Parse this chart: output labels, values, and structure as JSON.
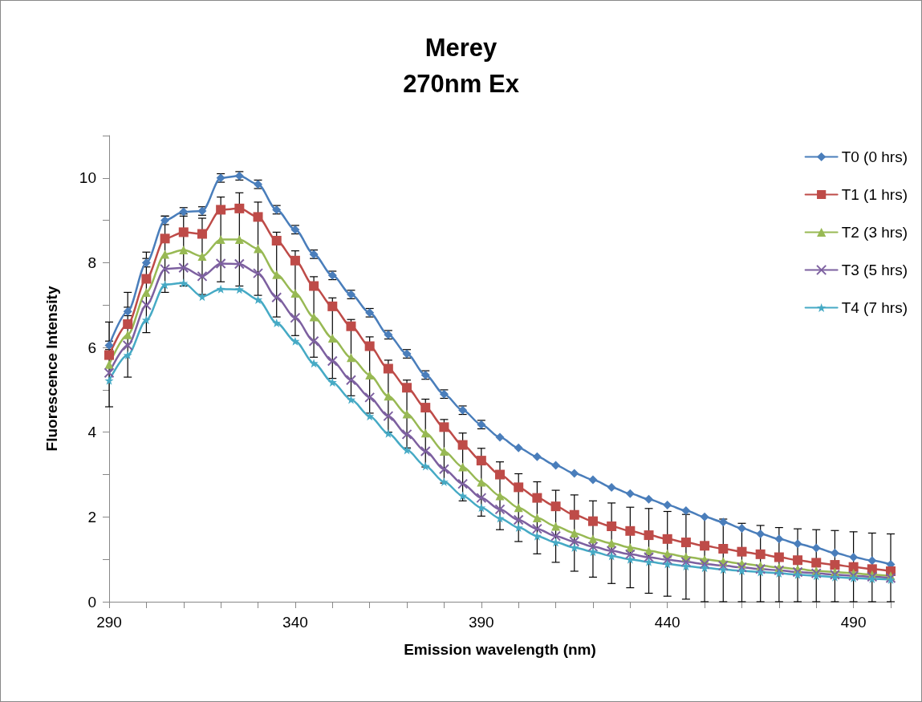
{
  "chart_data": {
    "type": "line",
    "title": "Merey",
    "subtitle": "270nm Ex",
    "xlabel": "Emission wavelength (nm)",
    "ylabel": "Fluorescence Intensity",
    "x": [
      290,
      295,
      300,
      305,
      310,
      315,
      320,
      325,
      330,
      335,
      340,
      345,
      350,
      355,
      360,
      365,
      370,
      375,
      380,
      385,
      390,
      395,
      400,
      405,
      410,
      415,
      420,
      425,
      430,
      435,
      440,
      445,
      450,
      455,
      460,
      465,
      470,
      475,
      480,
      485,
      490,
      495,
      500
    ],
    "xlim": [
      290,
      500
    ],
    "xticks": [
      290,
      {
        "value": 300,
        "label": null
      },
      {
        "value": 310,
        "label": null
      },
      {
        "value": 320,
        "label": null
      },
      {
        "value": 330,
        "label": null
      },
      340,
      {
        "value": 350,
        "label": null
      },
      {
        "value": 360,
        "label": null
      },
      {
        "value": 370,
        "label": null
      },
      {
        "value": 380,
        "label": null
      },
      390,
      {
        "value": 400,
        "label": null
      },
      {
        "value": 410,
        "label": null
      },
      {
        "value": 420,
        "label": null
      },
      {
        "value": 430,
        "label": null
      },
      440,
      {
        "value": 450,
        "label": null
      },
      {
        "value": 460,
        "label": null
      },
      {
        "value": 470,
        "label": null
      },
      {
        "value": 480,
        "label": null
      },
      490,
      {
        "value": 500,
        "label": null
      }
    ],
    "ylim": [
      0,
      11
    ],
    "yticks": [
      0,
      {
        "value": 1,
        "label": null
      },
      2,
      {
        "value": 3,
        "label": null
      },
      4,
      {
        "value": 5,
        "label": null
      },
      6,
      {
        "value": 7,
        "label": null
      },
      8,
      {
        "value": 9,
        "label": null
      },
      10,
      {
        "value": 11,
        "label": null
      }
    ],
    "grid": false,
    "legend": "top right",
    "line_style": "solid",
    "series": [
      {
        "name": "T0 (0 hrs)",
        "color": "#4a7ebb",
        "marker": "diamond",
        "values": [
          6.05,
          6.85,
          8.0,
          9.0,
          9.2,
          9.22,
          10.0,
          10.05,
          9.85,
          9.25,
          8.78,
          8.2,
          7.7,
          7.25,
          6.82,
          6.3,
          5.85,
          5.35,
          4.9,
          4.52,
          4.18,
          3.88,
          3.63,
          3.42,
          3.22,
          3.03,
          2.88,
          2.7,
          2.55,
          2.42,
          2.28,
          2.15,
          2.0,
          1.88,
          1.73,
          1.6,
          1.48,
          1.37,
          1.27,
          1.15,
          1.05,
          0.97,
          0.88
        ],
        "errors": [
          0.1,
          0.1,
          0.1,
          0.1,
          0.1,
          0.1,
          0.1,
          0.1,
          0.1,
          0.1,
          0.1,
          0.1,
          0.1,
          0.1,
          0.1,
          0.1,
          0.1,
          0.1,
          0.1,
          0.1,
          0.1,
          null,
          null,
          null,
          null,
          null,
          null,
          null,
          null,
          null,
          null,
          null,
          null,
          null,
          null,
          null,
          null,
          null,
          null,
          null,
          null,
          null,
          null
        ]
      },
      {
        "name": "T1 (1 hrs)",
        "color": "#be4b48",
        "marker": "square",
        "values": [
          5.82,
          6.55,
          7.62,
          8.57,
          8.72,
          8.68,
          9.25,
          9.28,
          9.08,
          8.52,
          8.05,
          7.45,
          6.97,
          6.5,
          6.03,
          5.5,
          5.05,
          4.58,
          4.12,
          3.7,
          3.33,
          3.0,
          2.7,
          2.45,
          2.25,
          2.05,
          1.9,
          1.78,
          1.67,
          1.57,
          1.48,
          1.4,
          1.32,
          1.25,
          1.18,
          1.12,
          1.05,
          0.98,
          0.92,
          0.87,
          0.82,
          0.77,
          0.72
        ]
      },
      {
        "name": "T2 (3 hrs)",
        "color": "#98b954",
        "marker": "triangle",
        "values": [
          5.6,
          6.3,
          7.3,
          8.2,
          8.3,
          8.15,
          8.55,
          8.55,
          8.33,
          7.72,
          7.28,
          6.72,
          6.22,
          5.76,
          5.35,
          4.85,
          4.43,
          3.98,
          3.55,
          3.18,
          2.82,
          2.5,
          2.22,
          1.98,
          1.78,
          1.62,
          1.48,
          1.38,
          1.28,
          1.2,
          1.13,
          1.06,
          1.0,
          0.95,
          0.9,
          0.85,
          0.81,
          0.77,
          0.73,
          0.7,
          0.67,
          0.64,
          0.61
        ],
        "errors": [
          1.0,
          1.0,
          0.95,
          0.9,
          0.85,
          0.9,
          1.0,
          1.1,
          1.1,
          1.0,
          1.0,
          0.95,
          0.95,
          0.9,
          0.9,
          0.85,
          0.8,
          0.8,
          0.75,
          0.8,
          0.8,
          0.8,
          0.8,
          0.85,
          0.85,
          0.9,
          0.9,
          0.95,
          0.95,
          1.0,
          1.0,
          1.0,
          1.0,
          [
            0,
            1.95
          ],
          [
            0,
            1.85
          ],
          [
            0,
            1.8
          ],
          [
            0,
            1.75
          ],
          [
            0,
            1.72
          ],
          [
            0,
            1.7
          ],
          [
            0,
            1.68
          ],
          [
            0,
            1.65
          ],
          [
            0,
            1.62
          ],
          [
            0,
            1.6
          ]
        ]
      },
      {
        "name": "T3 (5 hrs)",
        "color": "#7d60a0",
        "marker": "cross",
        "values": [
          5.4,
          6.05,
          7.0,
          7.85,
          7.88,
          7.68,
          7.98,
          7.97,
          7.75,
          7.18,
          6.7,
          6.15,
          5.68,
          5.23,
          4.82,
          4.38,
          3.95,
          3.55,
          3.13,
          2.78,
          2.45,
          2.18,
          1.93,
          1.72,
          1.55,
          1.42,
          1.3,
          1.2,
          1.12,
          1.05,
          0.99,
          0.94,
          0.89,
          0.85,
          0.81,
          0.77,
          0.74,
          0.7,
          0.67,
          0.64,
          0.61,
          0.59,
          0.56
        ]
      },
      {
        "name": "T4 (7 hrs)",
        "color": "#46aac5",
        "marker": "star",
        "values": [
          5.22,
          5.82,
          6.65,
          7.48,
          7.52,
          7.2,
          7.38,
          7.37,
          7.13,
          6.58,
          6.15,
          5.63,
          5.18,
          4.77,
          4.38,
          3.97,
          3.58,
          3.2,
          2.83,
          2.5,
          2.22,
          1.97,
          1.75,
          1.55,
          1.4,
          1.28,
          1.18,
          1.08,
          1.0,
          0.94,
          0.89,
          0.84,
          0.8,
          0.76,
          0.73,
          0.7,
          0.67,
          0.64,
          0.61,
          0.58,
          0.56,
          0.54,
          0.52
        ]
      }
    ]
  }
}
